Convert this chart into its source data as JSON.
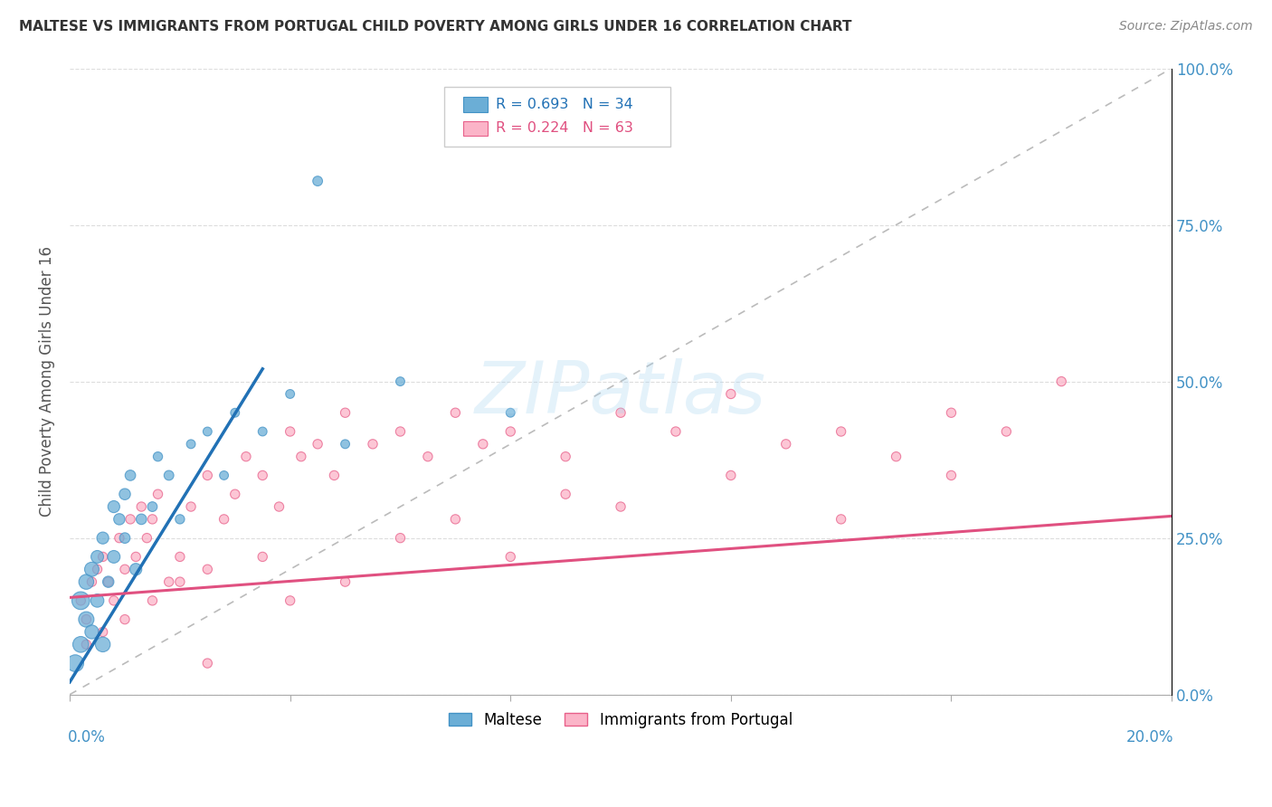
{
  "title": "MALTESE VS IMMIGRANTS FROM PORTUGAL CHILD POVERTY AMONG GIRLS UNDER 16 CORRELATION CHART",
  "source": "Source: ZipAtlas.com",
  "ylabel": "Child Poverty Among Girls Under 16",
  "yticks_labels": [
    "0.0%",
    "25.0%",
    "50.0%",
    "75.0%",
    "100.0%"
  ],
  "ytick_vals": [
    0,
    0.25,
    0.5,
    0.75,
    1.0
  ],
  "xlim": [
    0,
    0.2
  ],
  "ylim": [
    0,
    1.0
  ],
  "blue_color": "#6baed6",
  "blue_edge": "#4292c6",
  "blue_line_color": "#2171b5",
  "pink_color": "#fbb4c8",
  "pink_edge": "#e8608a",
  "pink_line_color": "#e05080",
  "ref_line_color": "#bbbbbb",
  "grid_color": "#dddddd",
  "watermark_text": "ZIPatlas",
  "blue_line_x0": 0.0,
  "blue_line_y0": 0.02,
  "blue_line_x1": 0.035,
  "blue_line_y1": 0.52,
  "pink_line_x0": 0.0,
  "pink_line_y0": 0.155,
  "pink_line_x1": 0.2,
  "pink_line_y1": 0.285,
  "blue_N": 34,
  "pink_N": 63,
  "blue_R": 0.693,
  "pink_R": 0.224
}
